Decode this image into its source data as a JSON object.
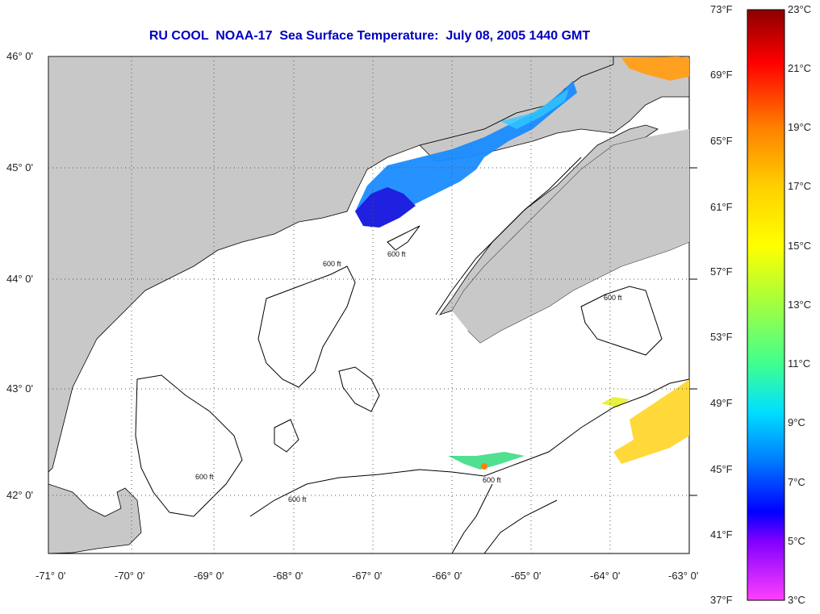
{
  "title": "RU COOL  NOAA-17  Sea Surface Temperature:  July 08, 2005 1440 GMT",
  "lat_labels": [
    "46° 0'",
    "45° 0'",
    "44° 0'",
    "43° 0'",
    "42° 0'"
  ],
  "lon_labels": [
    "-71° 0'",
    "-70° 0'",
    "-69° 0'",
    "-68° 0'",
    "-67° 0'",
    "-66° 0'",
    "-65° 0'",
    "-64° 0'",
    "-63° 0'"
  ],
  "bathymetry_label": "600 ft",
  "colorbar": {
    "fahrenheit": [
      "73°F",
      "69°F",
      "65°F",
      "61°F",
      "57°F",
      "53°F",
      "49°F",
      "45°F",
      "41°F",
      "37°F"
    ],
    "celsius": [
      "23°C",
      "21°C",
      "19°C",
      "17°C",
      "15°C",
      "13°C",
      "11°C",
      "9°C",
      "7°C",
      "5°C",
      "3°C"
    ],
    "colors": [
      "#8b0000",
      "#ff0000",
      "#ff8000",
      "#ffd000",
      "#ffff00",
      "#a0ff40",
      "#40ff90",
      "#00e0ff",
      "#0080ff",
      "#0000ff",
      "#8000ff",
      "#ff40ff"
    ]
  },
  "colors": {
    "land": "#c8c8c8",
    "water": "#ffffff",
    "title": "#0000c0"
  }
}
